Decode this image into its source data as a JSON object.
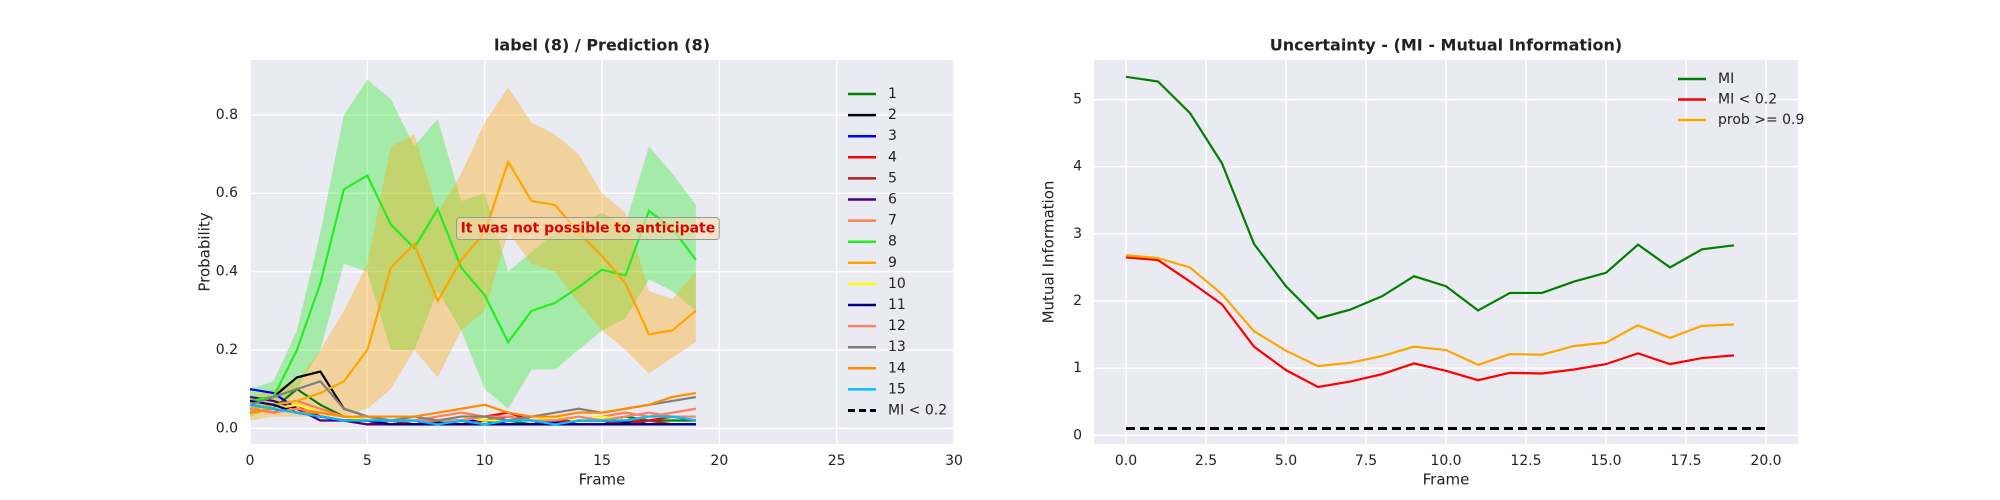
{
  "chart_data": [
    {
      "type": "line",
      "title": "label (8) / Prediction (8)",
      "xlabel": "Frame",
      "ylabel": "Probability",
      "x": [
        0,
        1,
        2,
        3,
        4,
        5,
        6,
        7,
        8,
        9,
        10,
        11,
        12,
        13,
        14,
        15,
        16,
        17,
        18,
        19
      ],
      "xlim": [
        0,
        30
      ],
      "xticks": [
        0,
        5,
        10,
        15,
        20,
        25,
        30
      ],
      "ylim": [
        -0.04,
        0.94
      ],
      "yticks": [
        {
          "value": 0,
          "label": "0.0"
        },
        {
          "value": 0.2,
          "label": "0.2"
        },
        {
          "value": 0.4,
          "label": "0.4"
        },
        {
          "value": 0.6,
          "label": "0.6"
        },
        {
          "value": 0.8,
          "label": "0.8"
        }
      ],
      "grid": true,
      "legend": "right",
      "series": [
        {
          "name": "1",
          "color": "#008000",
          "values": [
            0.06,
            0.05,
            0.1,
            0.06,
            0.03,
            0.02,
            0.02,
            0.01,
            0.01,
            0.02,
            0.01,
            0.02,
            0.01,
            0.01,
            0.02,
            0.02,
            0.03,
            0.02,
            0.02,
            0.02
          ]
        },
        {
          "name": "2",
          "color": "#000000",
          "values": [
            0.07,
            0.08,
            0.13,
            0.145,
            0.05,
            0.03,
            0.02,
            0.01,
            0.015,
            0.01,
            0.02,
            0.01,
            0.01,
            0.015,
            0.02,
            0.02,
            0.015,
            0.01,
            0.01,
            0.01
          ]
        },
        {
          "name": "3",
          "color": "#0000ff",
          "values": [
            0.1,
            0.09,
            0.05,
            0.03,
            0.02,
            0.02,
            0.01,
            0.01,
            0.01,
            0.02,
            0.02,
            0.01,
            0.01,
            0.02,
            0.01,
            0.01,
            0.02,
            0.01,
            0.01,
            0.01
          ]
        },
        {
          "name": "4",
          "color": "#ff0000",
          "values": [
            0.05,
            0.04,
            0.06,
            0.03,
            0.02,
            0.02,
            0.01,
            0.01,
            0.02,
            0.02,
            0.03,
            0.04,
            0.02,
            0.02,
            0.02,
            0.03,
            0.02,
            0.02,
            0.03,
            0.02
          ]
        },
        {
          "name": "5",
          "color": "#b22222",
          "values": [
            0.04,
            0.05,
            0.04,
            0.03,
            0.02,
            0.01,
            0.02,
            0.01,
            0.01,
            0.01,
            0.02,
            0.03,
            0.02,
            0.01,
            0.02,
            0.02,
            0.01,
            0.02,
            0.01,
            0.01
          ]
        },
        {
          "name": "6",
          "color": "#4b0082",
          "values": [
            0.08,
            0.07,
            0.05,
            0.02,
            0.02,
            0.01,
            0.01,
            0.01,
            0.01,
            0.01,
            0.01,
            0.01,
            0.01,
            0.01,
            0.01,
            0.01,
            0.01,
            0.01,
            0.01,
            0.01
          ]
        },
        {
          "name": "7",
          "color": "#ff7f50",
          "values": [
            0.05,
            0.06,
            0.07,
            0.05,
            0.03,
            0.03,
            0.02,
            0.02,
            0.03,
            0.04,
            0.03,
            0.02,
            0.03,
            0.03,
            0.02,
            0.03,
            0.04,
            0.03,
            0.04,
            0.05
          ]
        },
        {
          "name": "8",
          "color": "#22ee22",
          "values": [
            0.07,
            0.08,
            0.2,
            0.37,
            0.61,
            0.645,
            0.52,
            0.46,
            0.56,
            0.41,
            0.34,
            0.22,
            0.3,
            0.32,
            0.36,
            0.405,
            0.39,
            0.555,
            0.51,
            0.43
          ],
          "upper": [
            0.1,
            0.12,
            0.25,
            0.5,
            0.8,
            0.89,
            0.84,
            0.72,
            0.79,
            0.58,
            0.6,
            0.4,
            0.45,
            0.5,
            0.52,
            0.55,
            0.52,
            0.72,
            0.65,
            0.57
          ],
          "lower": [
            0.03,
            0.05,
            0.1,
            0.2,
            0.42,
            0.4,
            0.2,
            0.2,
            0.35,
            0.25,
            0.1,
            0.05,
            0.15,
            0.15,
            0.2,
            0.25,
            0.28,
            0.38,
            0.35,
            0.3
          ]
        },
        {
          "name": "9",
          "color": "#ffa500",
          "values": [
            0.05,
            0.06,
            0.07,
            0.09,
            0.12,
            0.2,
            0.41,
            0.47,
            0.325,
            0.43,
            0.5,
            0.68,
            0.58,
            0.57,
            0.5,
            0.44,
            0.37,
            0.24,
            0.25,
            0.3
          ],
          "upper": [
            0.08,
            0.1,
            0.12,
            0.2,
            0.3,
            0.42,
            0.72,
            0.75,
            0.55,
            0.65,
            0.78,
            0.87,
            0.78,
            0.75,
            0.7,
            0.6,
            0.55,
            0.35,
            0.33,
            0.4
          ],
          "lower": [
            0.02,
            0.03,
            0.03,
            0.03,
            0.03,
            0.05,
            0.1,
            0.2,
            0.13,
            0.25,
            0.3,
            0.5,
            0.42,
            0.4,
            0.32,
            0.25,
            0.2,
            0.14,
            0.18,
            0.22
          ]
        },
        {
          "name": "10",
          "color": "#ffff00",
          "values": [
            0.04,
            0.05,
            0.06,
            0.04,
            0.03,
            0.02,
            0.02,
            0.02,
            0.02,
            0.03,
            0.02,
            0.02,
            0.02,
            0.03,
            0.02,
            0.03,
            0.02,
            0.03,
            0.03,
            0.03
          ]
        },
        {
          "name": "11",
          "color": "#000080",
          "values": [
            0.07,
            0.06,
            0.04,
            0.03,
            0.02,
            0.02,
            0.01,
            0.01,
            0.01,
            0.01,
            0.01,
            0.01,
            0.01,
            0.01,
            0.01,
            0.01,
            0.01,
            0.01,
            0.01,
            0.01
          ]
        },
        {
          "name": "12",
          "color": "#fa8072",
          "values": [
            0.05,
            0.04,
            0.05,
            0.04,
            0.03,
            0.03,
            0.02,
            0.02,
            0.02,
            0.02,
            0.03,
            0.03,
            0.02,
            0.02,
            0.03,
            0.02,
            0.03,
            0.04,
            0.03,
            0.03
          ]
        },
        {
          "name": "13",
          "color": "#808080",
          "values": [
            0.06,
            0.08,
            0.1,
            0.12,
            0.05,
            0.03,
            0.02,
            0.03,
            0.02,
            0.03,
            0.03,
            0.02,
            0.03,
            0.04,
            0.05,
            0.04,
            0.05,
            0.06,
            0.07,
            0.08
          ]
        },
        {
          "name": "14",
          "color": "#ff8c00",
          "values": [
            0.04,
            0.05,
            0.04,
            0.04,
            0.03,
            0.03,
            0.03,
            0.03,
            0.04,
            0.05,
            0.06,
            0.04,
            0.03,
            0.03,
            0.04,
            0.04,
            0.05,
            0.06,
            0.08,
            0.09
          ]
        },
        {
          "name": "15",
          "color": "#00bfff",
          "values": [
            0.06,
            0.05,
            0.04,
            0.03,
            0.02,
            0.02,
            0.02,
            0.02,
            0.01,
            0.02,
            0.01,
            0.02,
            0.02,
            0.01,
            0.02,
            0.02,
            0.02,
            0.03,
            0.03,
            0.02
          ]
        }
      ],
      "threshold_label": "MI < 0.2",
      "annotation": {
        "text": "It was not possible to anticipate",
        "x": 14.4,
        "y": 0.51
      }
    },
    {
      "type": "line",
      "title": "Uncertainty - (MI - Mutual Information)",
      "xlabel": "Frame",
      "ylabel": "Mutual Information",
      "x": [
        0,
        1,
        2,
        3,
        4,
        5,
        6,
        7,
        8,
        9,
        10,
        11,
        12,
        13,
        14,
        15,
        16,
        17,
        18,
        19
      ],
      "xlim": [
        -1,
        21
      ],
      "xticks": [
        {
          "value": 0,
          "label": "0.0"
        },
        {
          "value": 2.5,
          "label": "2.5"
        },
        {
          "value": 5,
          "label": "5.0"
        },
        {
          "value": 7.5,
          "label": "7.5"
        },
        {
          "value": 10,
          "label": "10.0"
        },
        {
          "value": 12.5,
          "label": "12.5"
        },
        {
          "value": 15,
          "label": "15.0"
        },
        {
          "value": 17.5,
          "label": "17.5"
        },
        {
          "value": 20,
          "label": "20.0"
        }
      ],
      "ylim": [
        -0.13,
        5.59
      ],
      "yticks": [
        0,
        1,
        2,
        3,
        4,
        5
      ],
      "grid": true,
      "legend": "upper right",
      "series": [
        {
          "name": "MI",
          "color": "#008000",
          "values": [
            5.34,
            5.27,
            4.8,
            4.05,
            2.85,
            2.22,
            1.74,
            1.87,
            2.07,
            2.37,
            2.22,
            1.86,
            2.12,
            2.12,
            2.29,
            2.42,
            2.84,
            2.5,
            2.77,
            2.83
          ]
        },
        {
          "name": "MI < 0.2",
          "color": "#ff0000",
          "values": [
            2.65,
            2.61,
            2.29,
            1.95,
            1.32,
            0.97,
            0.72,
            0.8,
            0.91,
            1.07,
            0.96,
            0.82,
            0.93,
            0.92,
            0.98,
            1.06,
            1.22,
            1.06,
            1.15,
            1.19
          ]
        },
        {
          "name": "prob >= 0.9",
          "color": "#ffa500",
          "values": [
            2.68,
            2.64,
            2.5,
            2.1,
            1.55,
            1.26,
            1.03,
            1.08,
            1.18,
            1.32,
            1.27,
            1.05,
            1.21,
            1.2,
            1.33,
            1.38,
            1.64,
            1.45,
            1.63,
            1.65
          ]
        }
      ],
      "hline": {
        "y": 0.1,
        "x": [
          0,
          20
        ],
        "color": "#000000"
      }
    }
  ]
}
